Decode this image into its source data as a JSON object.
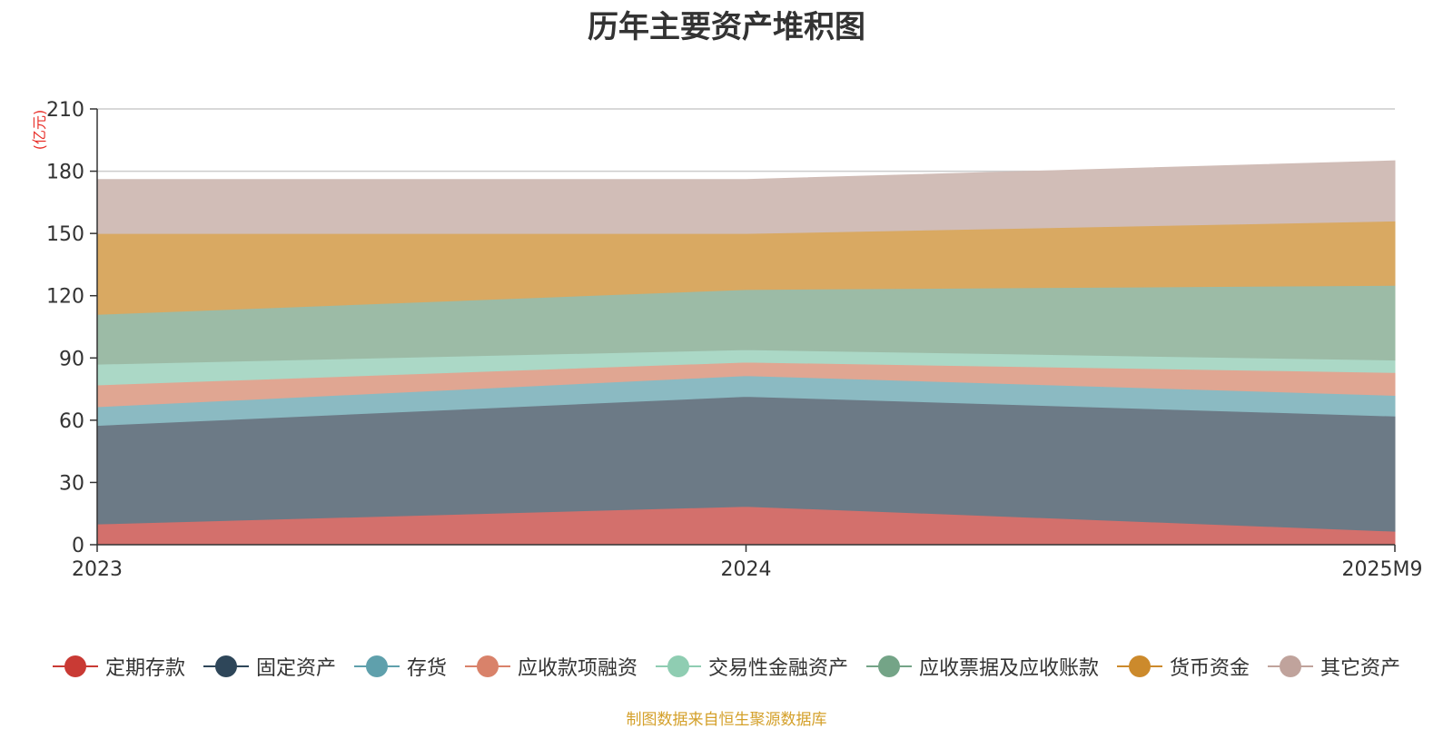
{
  "chart_data": {
    "type": "area",
    "stacked": true,
    "title": "历年主要资产堆积图",
    "ylabel": "(亿元)",
    "xlabel": "",
    "categories": [
      "2023",
      "2024",
      "2025M9"
    ],
    "ylim": [
      0,
      210
    ],
    "yticks": [
      0,
      30,
      60,
      90,
      120,
      150,
      180,
      210
    ],
    "grid": true,
    "legend_position": "bottom",
    "series": [
      {
        "name": "定期存款",
        "values": [
          10,
          18.5,
          6.5
        ],
        "color": "#d3706c",
        "marker_color": "#c93a34"
      },
      {
        "name": "固定资产",
        "values": [
          47.5,
          53,
          55.5
        ],
        "color": "#6c7a86",
        "marker_color": "#2e4659"
      },
      {
        "name": "存货",
        "values": [
          9,
          10,
          10
        ],
        "color": "#8bbac2",
        "marker_color": "#5fa0ac"
      },
      {
        "name": "应收款项融资",
        "values": [
          10.5,
          6.5,
          11
        ],
        "color": "#e0a692",
        "marker_color": "#d9826a"
      },
      {
        "name": "交易性金融资产",
        "values": [
          10,
          6,
          6
        ],
        "color": "#abd8c6",
        "marker_color": "#8fcdb2"
      },
      {
        "name": "应收票据及应收账款",
        "values": [
          24,
          29,
          36
        ],
        "color": "#9cbba6",
        "marker_color": "#74a487"
      },
      {
        "name": "货币资金",
        "values": [
          39,
          27,
          31
        ],
        "color": "#d9a962",
        "marker_color": "#cc8a2c"
      },
      {
        "name": "其它资产",
        "values": [
          26,
          26,
          29
        ],
        "color": "#d1bdb7",
        "marker_color": "#c0a39c"
      }
    ]
  },
  "footer": {
    "source": "制图数据来自恒生聚源数据库"
  }
}
